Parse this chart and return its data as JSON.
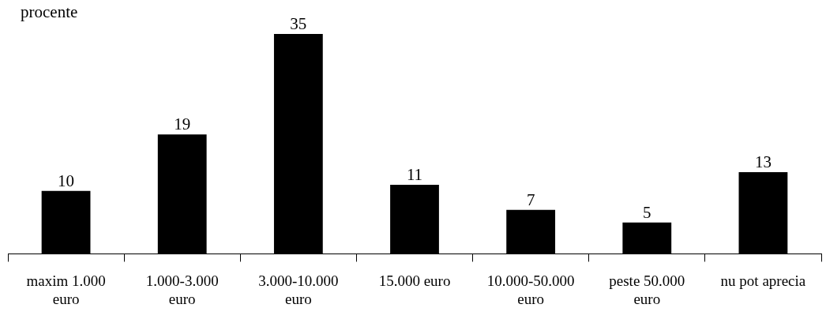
{
  "chart_data": {
    "type": "bar",
    "ylabel": "procente",
    "categories": [
      "maxim 1.000 euro",
      "1.000-3.000 euro",
      "3.000-10.000 euro",
      "15.000 euro",
      "10.000-50.000 euro",
      "peste 50.000 euro",
      "nu pot aprecia"
    ],
    "values": [
      10,
      19,
      35,
      11,
      7,
      5,
      13
    ],
    "color": "#000000",
    "data_labels": true,
    "grid": false,
    "legend": false
  }
}
